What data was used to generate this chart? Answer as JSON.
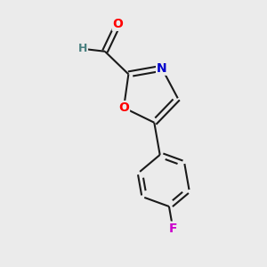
{
  "background_color": "#ebebeb",
  "bond_color": "#1a1a1a",
  "atom_colors": {
    "O": "#ff0000",
    "N": "#0000cc",
    "F": "#cc00cc",
    "H": "#4a8080",
    "C": "#1a1a1a"
  },
  "figsize": [
    3.0,
    3.0
  ],
  "dpi": 100,
  "lw": 1.5,
  "font_size": 9.5
}
